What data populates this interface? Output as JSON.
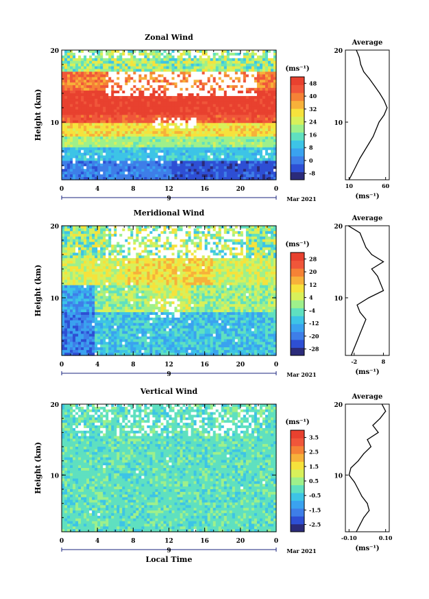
{
  "colors": {
    "scale": [
      "#2b2b7a",
      "#2e4fd4",
      "#3e7ee8",
      "#3aa2ef",
      "#3dc4e6",
      "#5fe0c0",
      "#9ef08b",
      "#d8f05a",
      "#f6e23c",
      "#f7b13a",
      "#f58236",
      "#f0563a",
      "#e8412f"
    ]
  },
  "common": {
    "time_ticks": [
      "0",
      "4",
      "8",
      "12",
      "16",
      "20",
      "0"
    ],
    "date_tick": "9",
    "date_label": "Mar 2021",
    "height_ticks": [
      "10",
      "20"
    ],
    "ylabel": "Height (km)",
    "unit_label": "(ms⁻¹)",
    "avg_title": "Average",
    "xlabel": "Local Time"
  },
  "chart_data": [
    {
      "type": "heatmap",
      "title": "Zonal Wind",
      "ylabel": "Height (km)",
      "ylim": [
        2,
        20
      ],
      "xlim": [
        0,
        24
      ],
      "colorbar": {
        "unit": "(ms⁻¹)",
        "ticks": [
          "-8",
          "0",
          "8",
          "16",
          "24",
          "32",
          "40",
          "48"
        ],
        "range": [
          -12,
          52
        ]
      },
      "profile": {
        "title": "Average",
        "xlabel": "(ms⁻¹)",
        "xticks": [
          "10",
          "60"
        ],
        "xrange": [
          5,
          65
        ],
        "height": [
          2,
          3,
          4,
          5,
          6,
          7,
          8,
          9,
          10,
          11,
          12,
          13,
          14,
          15,
          16,
          17,
          18,
          19,
          20
        ],
        "value": [
          10,
          15,
          20,
          25,
          31,
          37,
          43,
          47,
          51,
          58,
          62,
          58,
          52,
          45,
          38,
          30,
          26,
          24,
          20
        ]
      }
    },
    {
      "type": "heatmap",
      "title": "Meridional Wind",
      "ylabel": "Height (km)",
      "ylim": [
        2,
        20
      ],
      "xlim": [
        0,
        24
      ],
      "colorbar": {
        "unit": "(ms⁻¹)",
        "ticks": [
          "-28",
          "-20",
          "-12",
          "-4",
          "4",
          "12",
          "20",
          "28"
        ],
        "range": [
          -32,
          32
        ]
      },
      "profile": {
        "title": "Average",
        "xlabel": "(ms⁻¹)",
        "xticks": [
          "-2",
          "8"
        ],
        "xrange": [
          -5,
          10
        ],
        "height": [
          2,
          3,
          4,
          5,
          6,
          7,
          8,
          9,
          10,
          11,
          12,
          13,
          14,
          15,
          16,
          17,
          18,
          19,
          20
        ],
        "value": [
          -3,
          -2,
          -1,
          0,
          1,
          2,
          0,
          -1,
          3,
          8,
          7,
          6,
          4,
          8,
          4,
          2,
          1,
          0,
          -4
        ]
      }
    },
    {
      "type": "heatmap",
      "title": "Vertical Wind",
      "ylabel": "Height (km)",
      "xlabel": "Local Time",
      "ylim": [
        2,
        20
      ],
      "xlim": [
        0,
        24
      ],
      "colorbar": {
        "unit": "(ms⁻¹)",
        "ticks": [
          "-2.5",
          "-1.5",
          "-0.5",
          "0.5",
          "1.5",
          "2.5",
          "3.5"
        ],
        "range": [
          -3,
          4
        ]
      },
      "profile": {
        "title": "Average",
        "xlabel": "(ms⁻¹)",
        "xticks": [
          "-0.10",
          "0.10"
        ],
        "xrange": [
          -0.12,
          0.12
        ],
        "height": [
          2,
          3,
          4,
          5,
          6,
          7,
          8,
          9,
          10,
          11,
          12,
          13,
          14,
          15,
          16,
          17,
          18,
          19,
          20
        ],
        "value": [
          -0.06,
          -0.04,
          -0.02,
          0.01,
          0.0,
          -0.03,
          -0.05,
          -0.07,
          -0.1,
          -0.09,
          -0.05,
          -0.02,
          0.02,
          0.0,
          0.06,
          0.03,
          0.07,
          0.1,
          0.08
        ]
      }
    }
  ]
}
